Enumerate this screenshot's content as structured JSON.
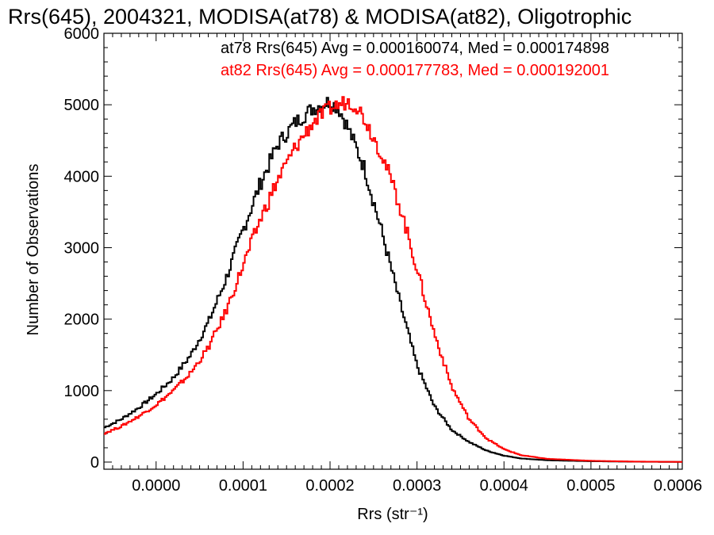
{
  "chart_data": {
    "type": "line",
    "title": "Rrs(645), 2004321, MODISA(at78) & MODISA(at82), Oligotrophic",
    "xlabel": "Rrs (str⁻¹)",
    "ylabel": "Number of Observations",
    "xlim": [
      -6e-05,
      0.000605
    ],
    "ylim": [
      -100,
      6000
    ],
    "x_ticks": [
      "0.0000",
      "0.0001",
      "0.0002",
      "0.0003",
      "0.0004",
      "0.0005",
      "0.0006"
    ],
    "x_tick_values": [
      0,
      0.0001,
      0.0002,
      0.0003,
      0.0004,
      0.0005,
      0.0006
    ],
    "y_ticks": [
      "0",
      "1000",
      "2000",
      "3000",
      "4000",
      "5000",
      "6000"
    ],
    "y_tick_values": [
      0,
      1000,
      2000,
      3000,
      4000,
      5000,
      6000
    ],
    "grid": false,
    "step_style": "histogram",
    "series": [
      {
        "name": "at78",
        "color": "#000000",
        "stats_label": "at78 Rrs(645) Avg = 0.000160074, Med = 0.000174898",
        "x": [
          -6e-05,
          -4e-05,
          -2e-05,
          0.0,
          2e-05,
          4e-05,
          6e-05,
          8e-05,
          0.0001,
          0.00012,
          0.00014,
          0.00016,
          0.00018,
          0.0002,
          0.00021,
          0.00022,
          0.00024,
          0.00026,
          0.00028,
          0.0003,
          0.00032,
          0.00034,
          0.00036,
          0.00038,
          0.0004,
          0.00042,
          0.00045,
          0.0005,
          0.00055,
          0.0006
        ],
        "values": [
          480,
          600,
          760,
          950,
          1180,
          1500,
          1950,
          2550,
          3250,
          3900,
          4450,
          4750,
          4950,
          5050,
          4950,
          4700,
          4100,
          3200,
          2250,
          1350,
          780,
          450,
          280,
          160,
          90,
          50,
          25,
          12,
          5,
          2
        ]
      },
      {
        "name": "at82",
        "color": "#ff0000",
        "stats_label": "at82 Rrs(645) Avg = 0.000177783, Med = 0.000192001",
        "x": [
          -6e-05,
          -4e-05,
          -2e-05,
          0.0,
          2e-05,
          4e-05,
          6e-05,
          8e-05,
          0.0001,
          0.00012,
          0.00014,
          0.00016,
          0.00018,
          0.0002,
          0.00022,
          0.00023,
          0.00024,
          0.00026,
          0.00028,
          0.0003,
          0.00032,
          0.00034,
          0.00036,
          0.00038,
          0.0004,
          0.00042,
          0.00045,
          0.0005,
          0.00055,
          0.0006
        ],
        "values": [
          400,
          500,
          640,
          800,
          1000,
          1250,
          1600,
          2100,
          2750,
          3400,
          3950,
          4400,
          4750,
          4950,
          5050,
          5000,
          4800,
          4300,
          3600,
          2700,
          1800,
          1050,
          600,
          330,
          180,
          95,
          45,
          18,
          7,
          3
        ]
      }
    ]
  }
}
